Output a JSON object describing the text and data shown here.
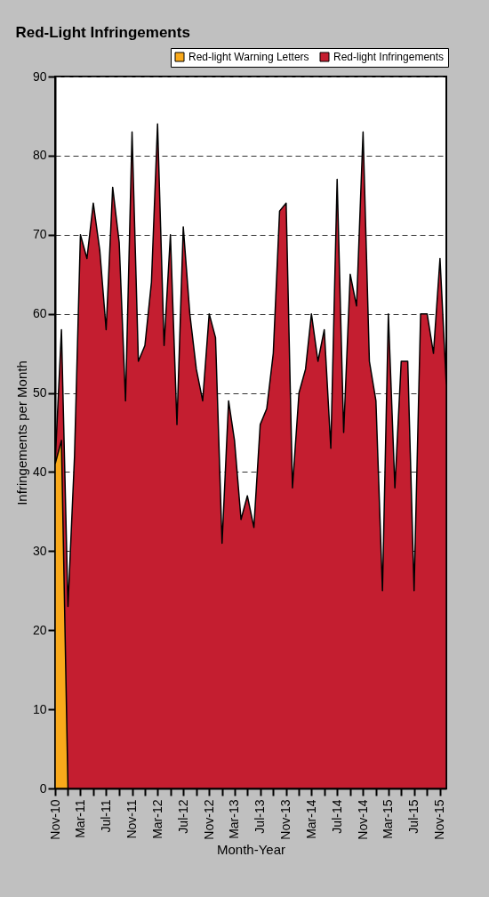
{
  "chart_data": {
    "type": "area",
    "title": "Red-Light Infringements",
    "xlabel": "Month-Year",
    "ylabel": "Infringements per Month",
    "series": [
      {
        "name": "Red-light Warning Letters",
        "color": "#f9a91b",
        "x": [
          "2010-11",
          "2010-12",
          "2011-01"
        ],
        "values": [
          41,
          44,
          0
        ]
      },
      {
        "name": "Red-light Infringements",
        "color": "#c41e30",
        "x": [
          "2010-11",
          "2010-12",
          "2011-01",
          "2011-02",
          "2011-03",
          "2011-04",
          "2011-05",
          "2011-06",
          "2011-07",
          "2011-08",
          "2011-09",
          "2011-10",
          "2011-11",
          "2011-12",
          "2012-01",
          "2012-02",
          "2012-03",
          "2012-04",
          "2012-05",
          "2012-06",
          "2012-07",
          "2012-08",
          "2012-09",
          "2012-10",
          "2012-11",
          "2012-12",
          "2013-01",
          "2013-02",
          "2013-03",
          "2013-04",
          "2013-05",
          "2013-06",
          "2013-07",
          "2013-08",
          "2013-09",
          "2013-10",
          "2013-11",
          "2013-12",
          "2014-01",
          "2014-02",
          "2014-03",
          "2014-04",
          "2014-05",
          "2014-06",
          "2014-07",
          "2014-08",
          "2014-09",
          "2014-10",
          "2014-11",
          "2014-12",
          "2015-01",
          "2015-02",
          "2015-03",
          "2015-04",
          "2015-05",
          "2015-06",
          "2015-07",
          "2015-08",
          "2015-09",
          "2015-10",
          "2015-11",
          "2015-12"
        ],
        "values": [
          41,
          58,
          23,
          42,
          70,
          67,
          74,
          68,
          58,
          76,
          69,
          49,
          83,
          54,
          56,
          64,
          84,
          56,
          70,
          46,
          71,
          60,
          53,
          49,
          60,
          57,
          31,
          49,
          44,
          34,
          37,
          33,
          46,
          48,
          55,
          73,
          74,
          38,
          50,
          53,
          60,
          54,
          58,
          43,
          77,
          45,
          65,
          61,
          83,
          54,
          49,
          25,
          60,
          38,
          54,
          54,
          25,
          60,
          60,
          55,
          67,
          51
        ]
      }
    ],
    "xlim": [
      "2010-11",
      "2015-12"
    ],
    "xticks": [
      {
        "value": "2010-11",
        "label": "Nov-10"
      },
      {
        "value": "2011-01",
        "label": null
      },
      {
        "value": "2011-03",
        "label": "Mar-11"
      },
      {
        "value": "2011-05",
        "label": null
      },
      {
        "value": "2011-07",
        "label": "Jul-11"
      },
      {
        "value": "2011-09",
        "label": null
      },
      {
        "value": "2011-11",
        "label": "Nov-11"
      },
      {
        "value": "2012-01",
        "label": null
      },
      {
        "value": "2012-03",
        "label": "Mar-12"
      },
      {
        "value": "2012-05",
        "label": null
      },
      {
        "value": "2012-07",
        "label": "Jul-12"
      },
      {
        "value": "2012-09",
        "label": null
      },
      {
        "value": "2012-11",
        "label": "Nov-12"
      },
      {
        "value": "2013-01",
        "label": null
      },
      {
        "value": "2013-03",
        "label": "Mar-13"
      },
      {
        "value": "2013-05",
        "label": null
      },
      {
        "value": "2013-07",
        "label": "Jul-13"
      },
      {
        "value": "2013-09",
        "label": null
      },
      {
        "value": "2013-11",
        "label": "Nov-13"
      },
      {
        "value": "2014-01",
        "label": null
      },
      {
        "value": "2014-03",
        "label": "Mar-14"
      },
      {
        "value": "2014-05",
        "label": null
      },
      {
        "value": "2014-07",
        "label": "Jul-14"
      },
      {
        "value": "2014-09",
        "label": null
      },
      {
        "value": "2014-11",
        "label": "Nov-14"
      },
      {
        "value": "2015-01",
        "label": null
      },
      {
        "value": "2015-03",
        "label": "Mar-15"
      },
      {
        "value": "2015-05",
        "label": null
      },
      {
        "value": "2015-07",
        "label": "Jul-15"
      },
      {
        "value": "2015-09",
        "label": null
      },
      {
        "value": "2015-11",
        "label": "Nov-15"
      }
    ],
    "ylim": [
      0,
      90
    ],
    "yticks": [
      0,
      10,
      20,
      30,
      40,
      50,
      60,
      70,
      80,
      90
    ],
    "grid": "y",
    "legend": "top right",
    "line_style": "solid"
  }
}
